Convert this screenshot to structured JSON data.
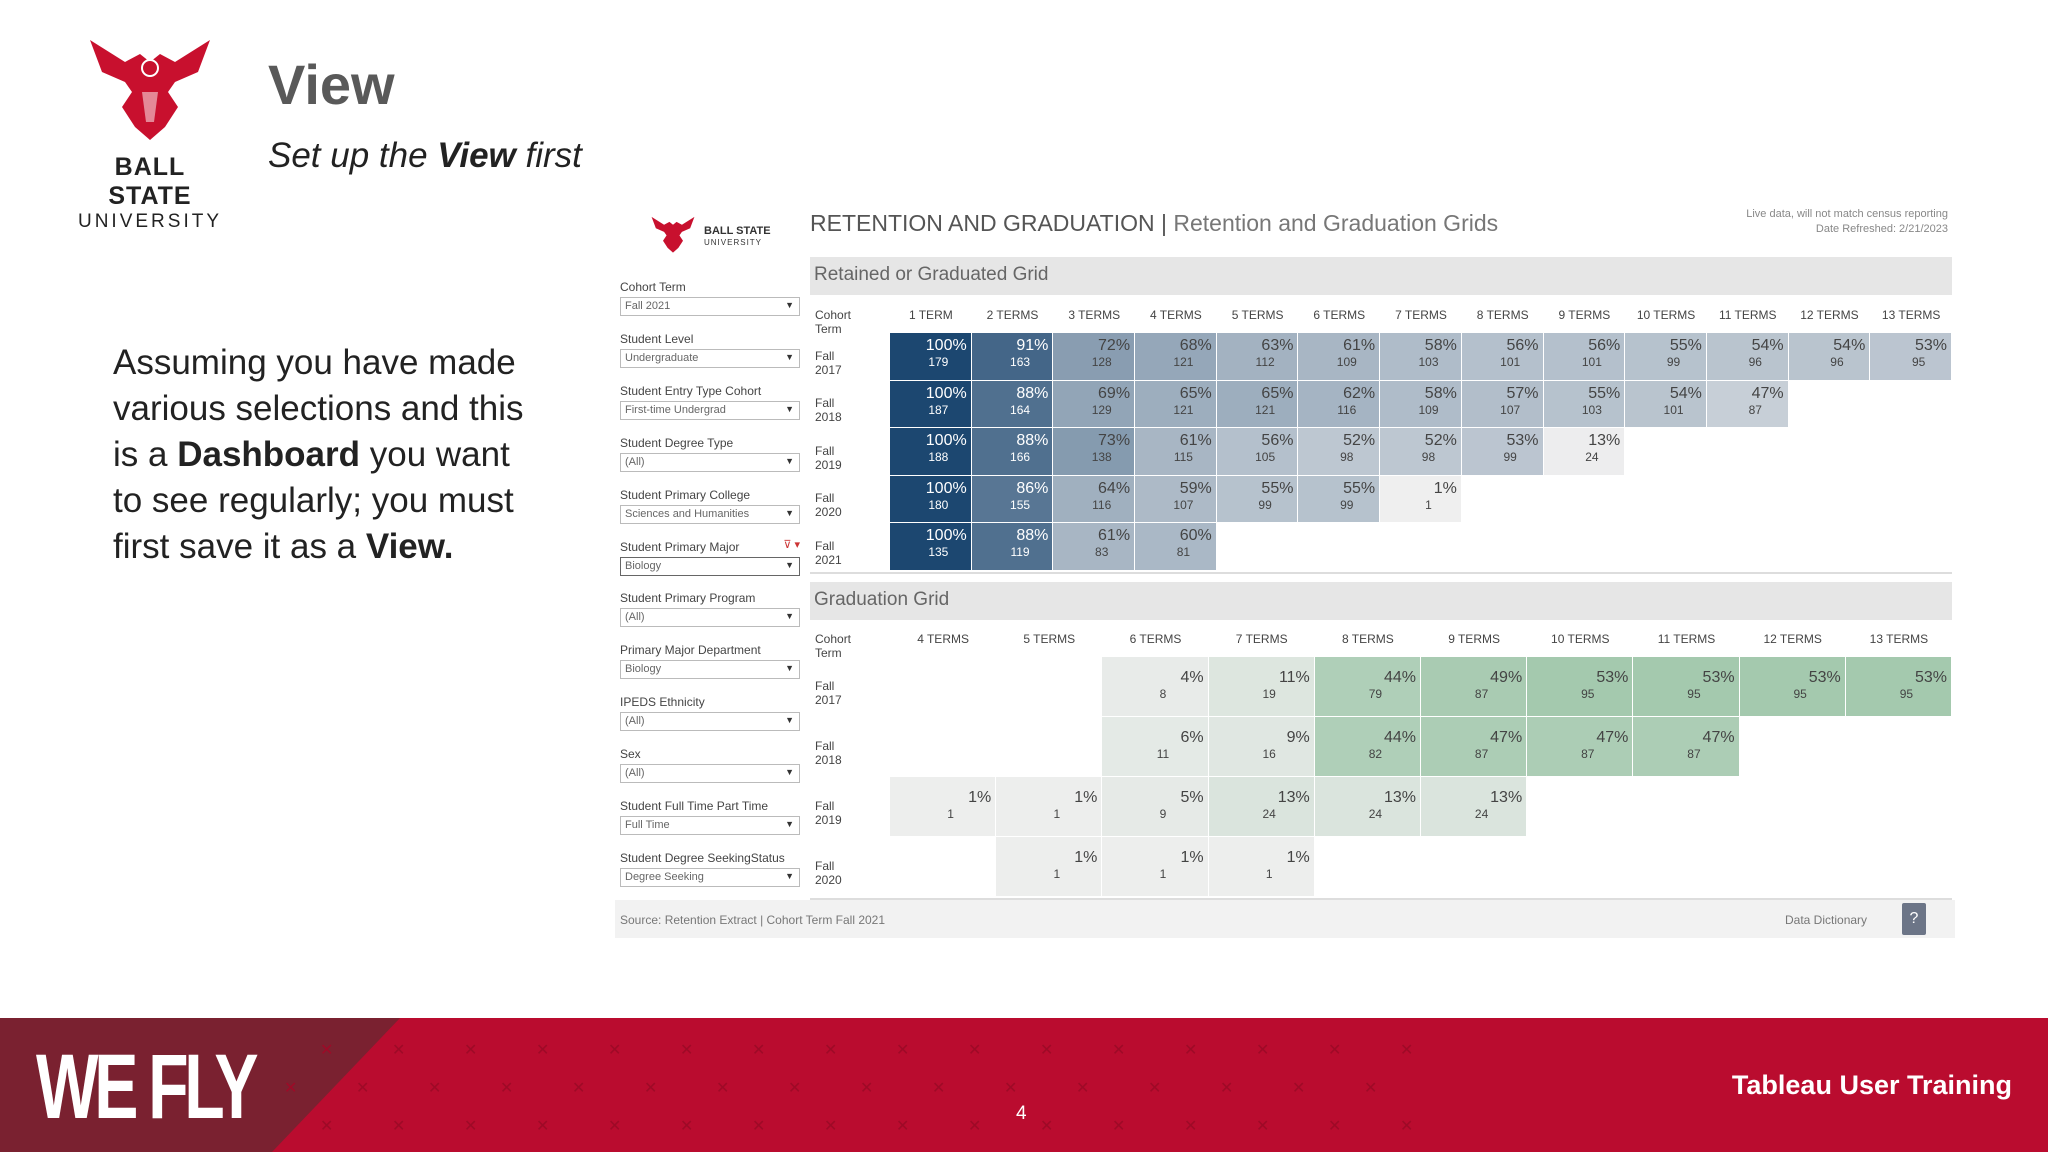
{
  "slide": {
    "title": "View",
    "subtitle_pre": "Set up the ",
    "subtitle_bold": "View",
    "subtitle_post": " first",
    "body_pre": "Assuming you have made various selections and this is a ",
    "body_bold1": "Dashboard",
    "body_mid": " you want to see regularly; you must first save it as a ",
    "body_bold2": "View.",
    "logo_line1": "BALL STATE",
    "logo_line2": "UNIVERSITY",
    "page_number": "4",
    "footer_brand": "WE FLY",
    "footer_right": "Tableau User Training",
    "brand_red": "#BA0C2F"
  },
  "dashboard": {
    "logo_line1": "BALL STATE",
    "logo_line2": "UNIVERSITY",
    "title": "RETENTION AND GRADUATION",
    "title_sep": " | ",
    "subtitle": "Retention and Graduation Grids",
    "note1": "Live data, will not match census reporting",
    "note2": "Date Refreshed: 2/21/2023",
    "filters": [
      {
        "label": "Cohort Term",
        "value": "Fall 2021"
      },
      {
        "label": "Student Level",
        "value": "Undergraduate"
      },
      {
        "label": "Student Entry Type Cohort",
        "value": "First-time Undergrad"
      },
      {
        "label": "Student Degree Type",
        "value": "(All)"
      },
      {
        "label": "Student Primary College",
        "value": "Sciences and Humanities"
      },
      {
        "label": "Student Primary Major",
        "value": "Biology"
      },
      {
        "label": "Student Primary Program",
        "value": "(All)"
      },
      {
        "label": "Primary Major Department",
        "value": "Biology"
      },
      {
        "label": "IPEDS Ethnicity",
        "value": "(All)"
      },
      {
        "label": "Sex",
        "value": "(All)"
      },
      {
        "label": "Student Full Time Part Time",
        "value": "Full Time"
      },
      {
        "label": "Student Degree SeekingStatus",
        "value": "Degree Seeking"
      }
    ],
    "retention": {
      "title": "Retained or Graduated Grid",
      "row_header": "Cohort Term",
      "columns": [
        "1 TERM",
        "2 TERMS",
        "3 TERMS",
        "4 TERMS",
        "5 TERMS",
        "6 TERMS",
        "7 TERMS",
        "8 TERMS",
        "9 TERMS",
        "10 TERMS",
        "11 TERMS",
        "12 TERMS",
        "13 TERMS"
      ],
      "color": "#1c4770",
      "rows": [
        {
          "term": "Fall 2017",
          "cells": [
            [
              "100%",
              "179"
            ],
            [
              "91%",
              "163"
            ],
            [
              "72%",
              "128"
            ],
            [
              "68%",
              "121"
            ],
            [
              "63%",
              "112"
            ],
            [
              "61%",
              "109"
            ],
            [
              "58%",
              "103"
            ],
            [
              "56%",
              "101"
            ],
            [
              "56%",
              "101"
            ],
            [
              "55%",
              "99"
            ],
            [
              "54%",
              "96"
            ],
            [
              "54%",
              "96"
            ],
            [
              "53%",
              "95"
            ]
          ]
        },
        {
          "term": "Fall 2018",
          "cells": [
            [
              "100%",
              "187"
            ],
            [
              "88%",
              "164"
            ],
            [
              "69%",
              "129"
            ],
            [
              "65%",
              "121"
            ],
            [
              "65%",
              "121"
            ],
            [
              "62%",
              "116"
            ],
            [
              "58%",
              "109"
            ],
            [
              "57%",
              "107"
            ],
            [
              "55%",
              "103"
            ],
            [
              "54%",
              "101"
            ],
            [
              "47%",
              "87"
            ]
          ]
        },
        {
          "term": "Fall 2019",
          "cells": [
            [
              "100%",
              "188"
            ],
            [
              "88%",
              "166"
            ],
            [
              "73%",
              "138"
            ],
            [
              "61%",
              "115"
            ],
            [
              "56%",
              "105"
            ],
            [
              "52%",
              "98"
            ],
            [
              "52%",
              "98"
            ],
            [
              "53%",
              "99"
            ],
            [
              "13%",
              "24"
            ]
          ]
        },
        {
          "term": "Fall 2020",
          "cells": [
            [
              "100%",
              "180"
            ],
            [
              "86%",
              "155"
            ],
            [
              "64%",
              "116"
            ],
            [
              "59%",
              "107"
            ],
            [
              "55%",
              "99"
            ],
            [
              "55%",
              "99"
            ],
            [
              "1%",
              "1"
            ]
          ]
        },
        {
          "term": "Fall 2021",
          "cells": [
            [
              "100%",
              "135"
            ],
            [
              "88%",
              "119"
            ],
            [
              "61%",
              "83"
            ],
            [
              "60%",
              "81"
            ]
          ]
        }
      ]
    },
    "graduation": {
      "title": "Graduation Grid",
      "row_header": "Cohort Term",
      "columns": [
        "4 TERMS",
        "5 TERMS",
        "6 TERMS",
        "7 TERMS",
        "8 TERMS",
        "9 TERMS",
        "10 TERMS",
        "11 TERMS",
        "12 TERMS",
        "13 TERMS"
      ],
      "color": "#6aab7c",
      "rows": [
        {
          "term": "Fall 2017",
          "cells": [
            null,
            null,
            [
              "4%",
              "8"
            ],
            [
              "11%",
              "19"
            ],
            [
              "44%",
              "79"
            ],
            [
              "49%",
              "87"
            ],
            [
              "53%",
              "95"
            ],
            [
              "53%",
              "95"
            ],
            [
              "53%",
              "95"
            ],
            [
              "53%",
              "95"
            ]
          ]
        },
        {
          "term": "Fall 2018",
          "cells": [
            null,
            null,
            [
              "6%",
              "11"
            ],
            [
              "9%",
              "16"
            ],
            [
              "44%",
              "82"
            ],
            [
              "47%",
              "87"
            ],
            [
              "47%",
              "87"
            ],
            [
              "47%",
              "87"
            ]
          ]
        },
        {
          "term": "Fall 2019",
          "cells": [
            [
              "1%",
              "1"
            ],
            [
              "1%",
              "1"
            ],
            [
              "5%",
              "9"
            ],
            [
              "13%",
              "24"
            ],
            [
              "13%",
              "24"
            ],
            [
              "13%",
              "24"
            ]
          ]
        },
        {
          "term": "Fall 2020",
          "cells": [
            null,
            [
              "1%",
              "1"
            ],
            [
              "1%",
              "1"
            ],
            [
              "1%",
              "1"
            ]
          ]
        }
      ]
    },
    "source": "Source: Retention Extract | Cohort Term Fall 2021",
    "data_dictionary": "Data Dictionary",
    "help_label": "?"
  }
}
